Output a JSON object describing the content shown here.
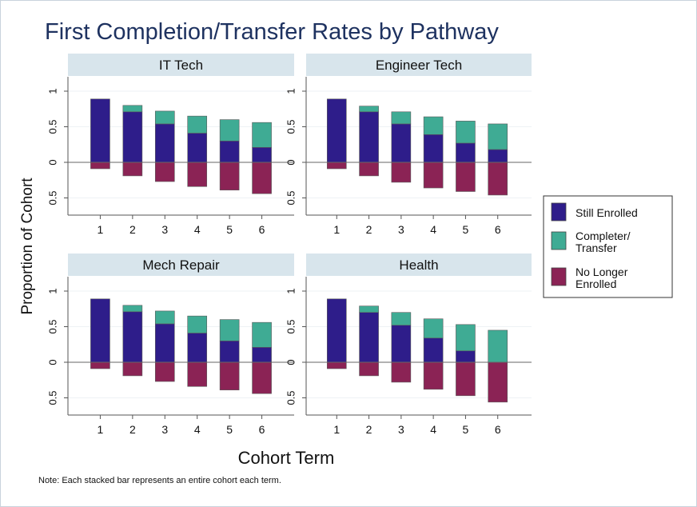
{
  "chart_data": {
    "type": "bar",
    "title": "First Completion/Transfer Rates by Pathway",
    "xlabel": "Cohort Term",
    "ylabel": "Proportion of Cohort",
    "note": "Note: Each stacked bar represents an entire cohort each term.",
    "categories": [
      "1",
      "2",
      "3",
      "4",
      "5",
      "6"
    ],
    "ylim": [
      -0.6,
      1.2
    ],
    "yticks": [
      {
        "value": 1,
        "label": "1"
      },
      {
        "value": 0.5,
        "label": "0.5"
      },
      {
        "value": 0,
        "label": "0"
      },
      {
        "value": -0.5,
        "label": "0.5"
      }
    ],
    "legend": {
      "position": "right",
      "entries": [
        {
          "key": "still_enrolled",
          "label_lines": [
            "Still Enrolled"
          ],
          "color": "#2e1d8a"
        },
        {
          "key": "completer_transfer",
          "label_lines": [
            "Completer/",
            "Transfer"
          ],
          "color": "#3fab94"
        },
        {
          "key": "no_longer_enrolled",
          "label_lines": [
            "No Longer",
            "Enrolled"
          ],
          "color": "#8b2355"
        }
      ]
    },
    "panels": [
      {
        "title": "IT Tech",
        "series": [
          {
            "name": "Still Enrolled",
            "values": [
              0.89,
              0.71,
              0.54,
              0.41,
              0.3,
              0.21
            ]
          },
          {
            "name": "Completer/ Transfer",
            "values": [
              0.0,
              0.09,
              0.18,
              0.24,
              0.3,
              0.35
            ]
          },
          {
            "name": "No Longer Enrolled",
            "values": [
              -0.09,
              -0.19,
              -0.27,
              -0.34,
              -0.39,
              -0.44
            ]
          }
        ]
      },
      {
        "title": "Engineer Tech",
        "series": [
          {
            "name": "Still Enrolled",
            "values": [
              0.89,
              0.71,
              0.54,
              0.39,
              0.27,
              0.18
            ]
          },
          {
            "name": "Completer/ Transfer",
            "values": [
              0.0,
              0.08,
              0.17,
              0.25,
              0.31,
              0.36
            ]
          },
          {
            "name": "No Longer Enrolled",
            "values": [
              -0.09,
              -0.19,
              -0.28,
              -0.36,
              -0.41,
              -0.46
            ]
          }
        ]
      },
      {
        "title": "Mech Repair",
        "series": [
          {
            "name": "Still Enrolled",
            "values": [
              0.89,
              0.71,
              0.54,
              0.41,
              0.3,
              0.21
            ]
          },
          {
            "name": "Completer/ Transfer",
            "values": [
              0.0,
              0.09,
              0.18,
              0.24,
              0.3,
              0.35
            ]
          },
          {
            "name": "No Longer Enrolled",
            "values": [
              -0.09,
              -0.19,
              -0.27,
              -0.34,
              -0.39,
              -0.44
            ]
          }
        ]
      },
      {
        "title": "Health",
        "series": [
          {
            "name": "Still Enrolled",
            "values": [
              0.89,
              0.7,
              0.52,
              0.34,
              0.16,
              0.0
            ]
          },
          {
            "name": "Completer/ Transfer",
            "values": [
              0.0,
              0.09,
              0.18,
              0.27,
              0.37,
              0.45
            ]
          },
          {
            "name": "No Longer Enrolled",
            "values": [
              -0.09,
              -0.19,
              -0.28,
              -0.38,
              -0.47,
              -0.56
            ]
          }
        ]
      }
    ]
  }
}
